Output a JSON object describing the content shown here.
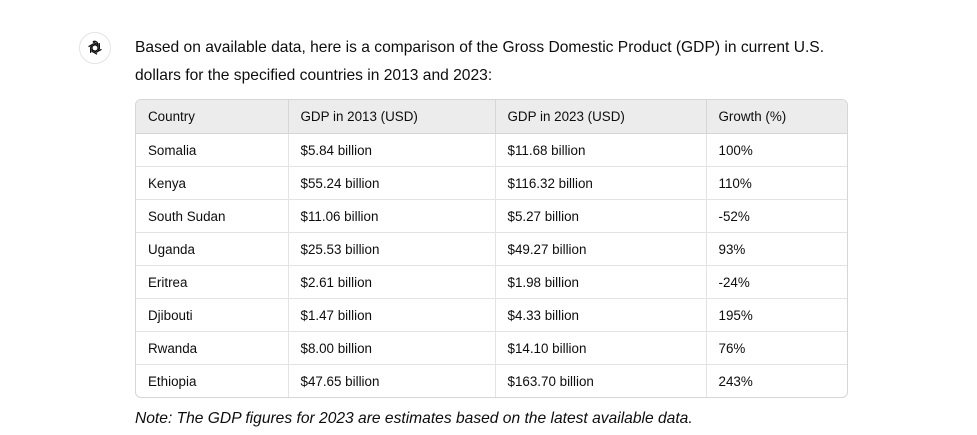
{
  "assistant": {
    "avatar_icon": "openai-logo-icon"
  },
  "message": {
    "intro_line1": "Based on available data, here is a comparison of the Gross Domestic Product (GDP) in current U.S.",
    "intro_line2": "dollars for the specified countries in 2013 and 2023:",
    "note": "Note: The GDP figures for 2023 are estimates based on the latest available data."
  },
  "table": {
    "headers": [
      "Country",
      "GDP in 2013 (USD)",
      "GDP in 2023 (USD)",
      "Growth (%)"
    ],
    "rows": [
      [
        "Somalia",
        "$5.84 billion",
        "$11.68 billion",
        "100%"
      ],
      [
        "Kenya",
        "$55.24 billion",
        "$116.32 billion",
        "110%"
      ],
      [
        "South Sudan",
        "$11.06 billion",
        "$5.27 billion",
        "-52%"
      ],
      [
        "Uganda",
        "$25.53 billion",
        "$49.27 billion",
        "93%"
      ],
      [
        "Eritrea",
        "$2.61 billion",
        "$1.98 billion",
        "-24%"
      ],
      [
        "Djibouti",
        "$1.47 billion",
        "$4.33 billion",
        "195%"
      ],
      [
        "Rwanda",
        "$8.00 billion",
        "$14.10 billion",
        "76%"
      ],
      [
        "Ethiopia",
        "$47.65 billion",
        "$163.70 billion",
        "243%"
      ]
    ]
  }
}
